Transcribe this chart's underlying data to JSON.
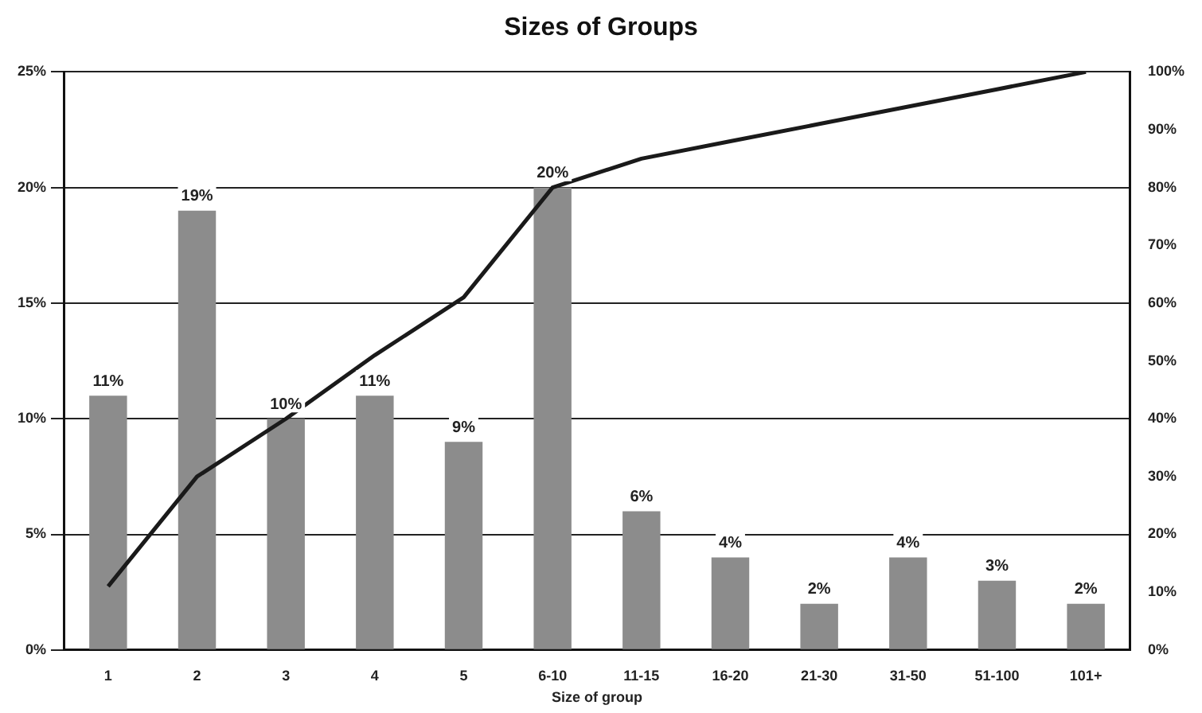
{
  "chart_data": {
    "type": "bar",
    "title": "Sizes of Groups",
    "xlabel": "Size of group",
    "categories": [
      "1",
      "2",
      "3",
      "4",
      "5",
      "6-10",
      "11-15",
      "16-20",
      "21-30",
      "31-50",
      "51-100",
      "101+"
    ],
    "series": [
      {
        "color": "#8c8c8c",
        "values": [
          11,
          19,
          10,
          11,
          9,
          20,
          6,
          4,
          2,
          4,
          3,
          2
        ],
        "value_labels": [
          "11%",
          "19%",
          "10%",
          "11%",
          "9%",
          "20%",
          "6%",
          "4%",
          "2%",
          "4%",
          "3%",
          "2%"
        ]
      },
      {
        "type": "line",
        "axis": "y2",
        "color": "#1a1a1a",
        "values": [
          11,
          30,
          40,
          51,
          61,
          80,
          85,
          88,
          91,
          94,
          97,
          100
        ]
      }
    ],
    "ylim": [
      0,
      25
    ],
    "yticks": [
      {
        "value": 0,
        "label": "0%"
      },
      {
        "value": 5,
        "label": "5%"
      },
      {
        "value": 10,
        "label": "10%"
      },
      {
        "value": 15,
        "label": "15%"
      },
      {
        "value": 20,
        "label": "20%"
      },
      {
        "value": 25,
        "label": "25%"
      }
    ],
    "y2lim": [
      0,
      100
    ],
    "y2ticks": [
      {
        "value": 0,
        "label": "0%"
      },
      {
        "value": 10,
        "label": "10%"
      },
      {
        "value": 20,
        "label": "20%"
      },
      {
        "value": 30,
        "label": "30%"
      },
      {
        "value": 40,
        "label": "40%"
      },
      {
        "value": 50,
        "label": "50%"
      },
      {
        "value": 60,
        "label": "60%"
      },
      {
        "value": 70,
        "label": "70%"
      },
      {
        "value": 80,
        "label": "80%"
      },
      {
        "value": 90,
        "label": "90%"
      },
      {
        "value": 100,
        "label": "100%"
      }
    ],
    "grid": "y",
    "legend": false,
    "marker": "none",
    "line_style": "solid"
  }
}
